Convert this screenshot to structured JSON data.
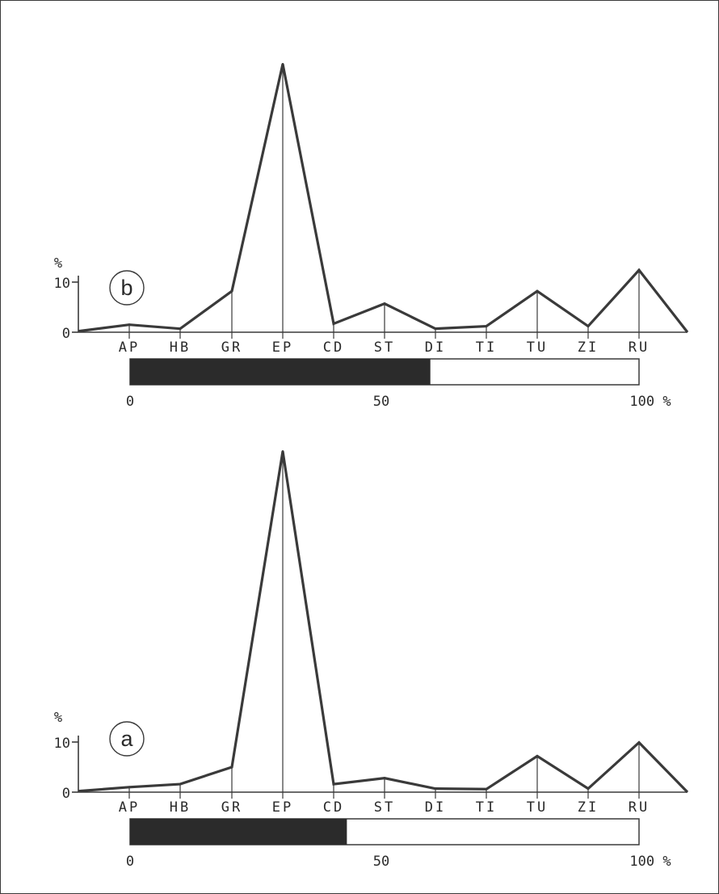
{
  "chart_data": [
    {
      "type": "line",
      "panel_label": "b",
      "y_unit": "%",
      "y_ticks": [
        "10",
        "0"
      ],
      "ylim": [
        0,
        55
      ],
      "categories": [
        "AP",
        "HB",
        "GR",
        "EP",
        "CD",
        "ST",
        "DI",
        "TI",
        "TU",
        "ZI",
        "RU"
      ],
      "values": [
        1.5,
        0.7,
        8.2,
        53.5,
        1.7,
        5.7,
        0.7,
        1.2,
        8.2,
        1.2,
        12.4
      ],
      "start_value": 0.2,
      "end_value": 0,
      "bar_axis": {
        "ticks": [
          "0",
          "50",
          "100 %"
        ],
        "filled_fraction": 0.59
      }
    },
    {
      "type": "line",
      "panel_label": "a",
      "y_unit": "%",
      "y_ticks": [
        "10",
        "0"
      ],
      "ylim": [
        0,
        55
      ],
      "categories": [
        "AP",
        "HB",
        "GR",
        "EP",
        "CD",
        "ST",
        "DI",
        "TI",
        "TU",
        "ZI",
        "RU"
      ],
      "values": [
        1.0,
        1.6,
        5.0,
        68.0,
        1.6,
        2.8,
        0.7,
        0.6,
        7.2,
        0.7,
        9.9
      ],
      "start_value": 0.2,
      "end_value": 0,
      "bar_axis": {
        "ticks": [
          "0",
          "50",
          "100 %"
        ],
        "filled_fraction": 0.426
      }
    }
  ],
  "colors": {
    "line": "#3a3a3a",
    "fill": "#2b2b2b",
    "frame": "#3a3a3a"
  }
}
